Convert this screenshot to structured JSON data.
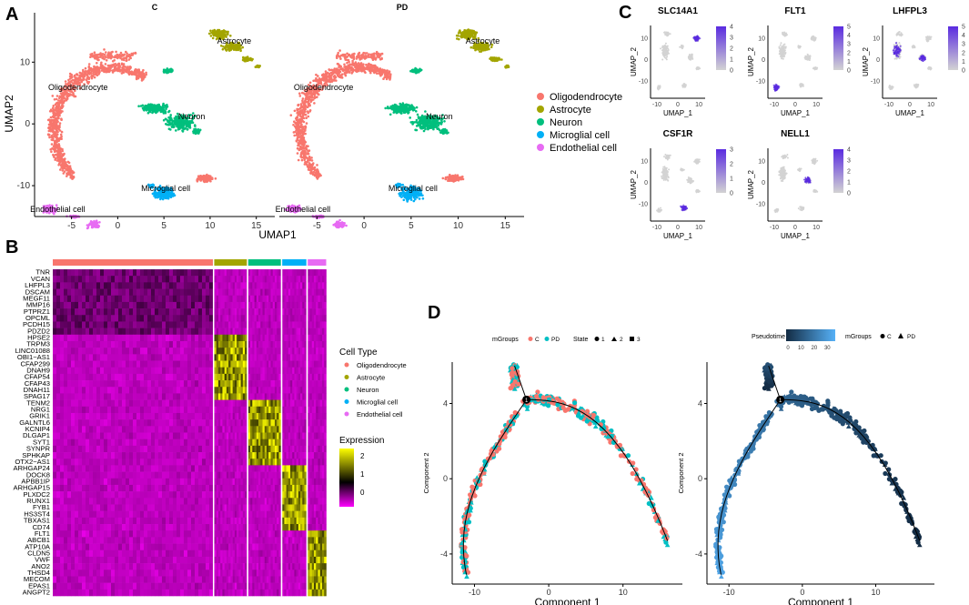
{
  "panel_letters": {
    "a": "A",
    "b": "B",
    "c": "C",
    "d": "D"
  },
  "colors": {
    "oligo": "#F8766D",
    "astro": "#A3A500",
    "neuron": "#00BF7D",
    "micro": "#00B0F6",
    "endo": "#E76BF3",
    "state_c": "#F8766D",
    "state_pd": "#00BFC4",
    "heat_low": "#FF00FF",
    "heat_mid": "#000000",
    "heat_high": "#FFFF00",
    "feature_low": "#D3D3D3",
    "feature_high": "#5A2BE0",
    "pseudo_low": "#132B43",
    "pseudo_high": "#56B1F7"
  },
  "chart_data": [
    {
      "id": "A",
      "type": "scatter",
      "subtype": "umap",
      "facets": [
        "C",
        "PD"
      ],
      "xlabel": "UMAP1",
      "ylabel": "UMAP2",
      "xlim": [
        -9,
        17
      ],
      "ylim": [
        -15,
        18
      ],
      "xticks": [
        -5,
        0,
        5,
        10,
        15
      ],
      "yticks": [
        -10,
        0,
        10
      ],
      "legend_position": "right",
      "clusters": [
        {
          "name": "Oligodendrocyte",
          "color_key": "oligo",
          "center": [
            -4,
            2
          ]
        },
        {
          "name": "Astrocyte",
          "color_key": "astro",
          "center": [
            11.5,
            12.5
          ]
        },
        {
          "name": "Neuron",
          "color_key": "neuron",
          "center": [
            6,
            0
          ]
        },
        {
          "name": "Microglial cell",
          "color_key": "micro",
          "center": [
            5,
            -11
          ]
        },
        {
          "name": "Endothelial cell",
          "color_key": "endo",
          "center": [
            -6,
            -14
          ]
        }
      ],
      "extra_islands_data_units": [
        {
          "cluster": "Neuron",
          "x": 5,
          "y": 8.5
        },
        {
          "cluster": "Oligodendrocyte",
          "x": 9.5,
          "y": -9
        }
      ]
    },
    {
      "id": "B",
      "type": "heatmap",
      "genes": [
        "TNR",
        "VCAN",
        "LHFPL3",
        "DSCAM",
        "MEGF11",
        "MMP16",
        "PTPRZ1",
        "OPCML",
        "PCDH15",
        "PDZD2",
        "HPSE2",
        "TRPM3",
        "LINC01088",
        "OBI1−AS1",
        "CFAP299",
        "DNAH9",
        "CFAP54",
        "CFAP43",
        "DNAH11",
        "SPAG17",
        "TENM2",
        "NRG1",
        "GRIK1",
        "GALNTL6",
        "KCNIP4",
        "DLGAP1",
        "SYT1",
        "SYNPR",
        "SPHKAP",
        "OTX2−AS1",
        "ARHGAP24",
        "DOCK8",
        "APBB1IP",
        "ARHGAP15",
        "PLXDC2",
        "RUNX1",
        "FYB1",
        "HS3ST4",
        "TBXAS1",
        "CD74",
        "FLT1",
        "ABCB1",
        "ATP10A",
        "CLDN5",
        "VWF",
        "ANO2",
        "THSD4",
        "MECOM",
        "EPAS1",
        "ANGPT2"
      ],
      "groups": [
        {
          "name": "Oligodendrocyte",
          "color_key": "oligo",
          "fraction": 0.57,
          "gene_range": [
            0,
            9
          ]
        },
        {
          "name": "Astrocyte",
          "color_key": "astro",
          "fraction": 0.12,
          "gene_range": [
            10,
            19
          ]
        },
        {
          "name": "Neuron",
          "color_key": "neuron",
          "fraction": 0.12,
          "gene_range": [
            20,
            29
          ]
        },
        {
          "name": "Microglial cell",
          "color_key": "micro",
          "fraction": 0.09,
          "gene_range": [
            30,
            39
          ]
        },
        {
          "name": "Endothelial cell",
          "color_key": "endo",
          "fraction": 0.07,
          "gene_range": [
            40,
            49
          ]
        }
      ],
      "legend_title_celltype": "Cell Type",
      "legend_title_expression": "Expression",
      "expression_ticks": [
        2,
        1,
        0
      ],
      "expression_range": [
        -0.8,
        2.4
      ]
    },
    {
      "id": "C",
      "type": "scatter",
      "subtype": "feature_plot",
      "xlabel": "UMAP_1",
      "ylabel": "UMAP_2",
      "xticks": [
        -10,
        0,
        10
      ],
      "yticks": [
        10,
        0,
        -10
      ],
      "features": [
        {
          "gene": "SLC14A1",
          "max": 4,
          "ticks": [
            4,
            3,
            2,
            1,
            0
          ],
          "hot": "Astrocyte"
        },
        {
          "gene": "FLT1",
          "max": 5,
          "ticks": [
            5,
            4,
            3,
            2,
            1,
            0
          ],
          "hot": "Endothelial cell"
        },
        {
          "gene": "LHFPL3",
          "max": 5,
          "ticks": [
            5,
            4,
            3,
            2,
            1,
            0
          ],
          "hot": "Oligodendrocyte,Neuron"
        },
        {
          "gene": "CSF1R",
          "max": 3,
          "ticks": [
            3,
            2,
            1,
            0
          ],
          "hot": "Microglial cell"
        },
        {
          "gene": "NELL1",
          "max": 4,
          "ticks": [
            4,
            3,
            2,
            1,
            0
          ],
          "hot": "Neuron"
        }
      ]
    },
    {
      "id": "D",
      "type": "scatter",
      "subtype": "trajectory",
      "xlabel": "Component 1",
      "ylabel": "Component 2",
      "xlim": [
        -13,
        18
      ],
      "ylim": [
        -5.6,
        6.2
      ],
      "xticks": [
        -10,
        0,
        10
      ],
      "yticks": [
        4,
        0,
        -4
      ],
      "branch_point": [
        -3,
        4.2
      ],
      "branch_label": "1",
      "left_legend": {
        "groups_title": "mGroups",
        "groups": [
          "C",
          "PD"
        ],
        "state_title": "State",
        "states": [
          "1",
          "2",
          "3"
        ]
      },
      "right_legend": {
        "pseudotime_title": "Pseudotime",
        "pseudotime_ticks": [
          0,
          10,
          20,
          30
        ],
        "groups_title": "mGroups",
        "groups": [
          "C",
          "PD"
        ]
      }
    }
  ]
}
